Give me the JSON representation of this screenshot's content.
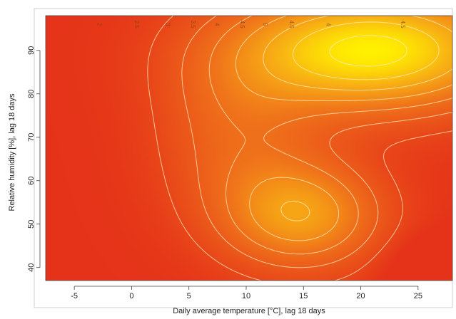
{
  "chart_data": {
    "type": "heatmap",
    "title": "",
    "xlabel": "Daily average temperature [°C], lag 18 days",
    "ylabel": "Relative humidity [%], lag 18 days",
    "xlim": [
      -7.5,
      28
    ],
    "ylim": [
      37,
      98
    ],
    "x_ticks": [
      -5,
      0,
      5,
      10,
      15,
      20,
      25
    ],
    "y_ticks": [
      40,
      50,
      60,
      70,
      80,
      90
    ],
    "x_tick_labels": [
      "-5",
      "0",
      "5",
      "10",
      "15",
      "20",
      "25"
    ],
    "y_tick_labels": [
      "40",
      "50",
      "60",
      "70",
      "80",
      "90"
    ],
    "color_scale": {
      "low": "#e53319",
      "mid": "#f08a1a",
      "high": "#ffef00"
    },
    "value_range": [
      1.5,
      5.2
    ],
    "contour_levels": [
      2,
      2.5,
      3,
      3.5,
      4,
      4.5,
      5
    ],
    "contour_labels": [
      {
        "text": "2",
        "x": -3.0,
        "y": 96
      },
      {
        "text": "2.5",
        "x": 0.3,
        "y": 96
      },
      {
        "text": "3",
        "x": 3.0,
        "y": 96
      },
      {
        "text": "3.5",
        "x": 5.2,
        "y": 96
      },
      {
        "text": "4",
        "x": 7.3,
        "y": 96
      },
      {
        "text": "4.5",
        "x": 9.5,
        "y": 96
      },
      {
        "text": "5",
        "x": 11.5,
        "y": 96
      },
      {
        "text": "4.5",
        "x": 13.8,
        "y": 96
      },
      {
        "text": "4",
        "x": 17.0,
        "y": 96
      },
      {
        "text": "4.5",
        "x": 23.5,
        "y": 96
      }
    ]
  }
}
